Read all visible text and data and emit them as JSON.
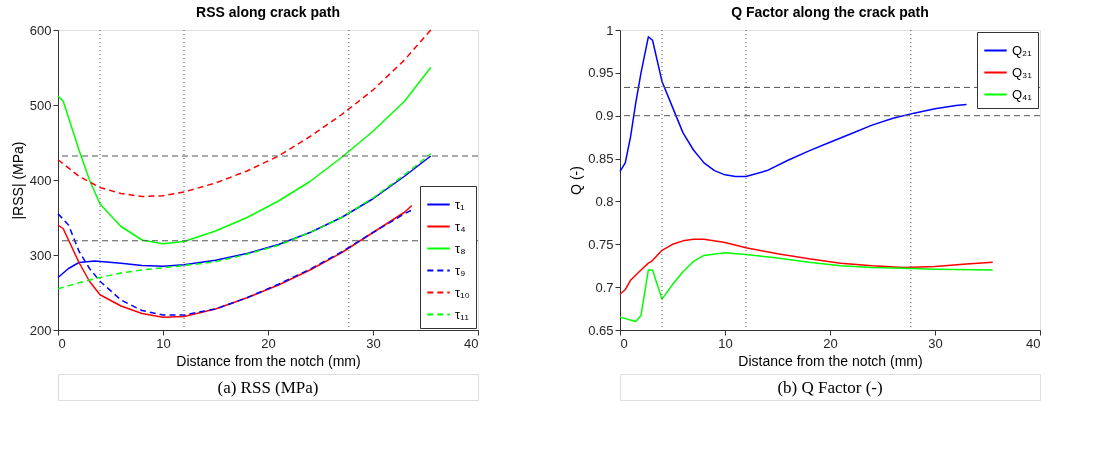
{
  "chart_data": [
    {
      "type": "line",
      "title": "RSS along crack path",
      "xlabel": "Distance from the notch (mm)",
      "ylabel": "|RSS| (MPa)",
      "xlim": [
        0,
        40
      ],
      "xticks": [
        0,
        10,
        20,
        30,
        40
      ],
      "ylim": [
        200,
        600
      ],
      "yticks": [
        200,
        300,
        400,
        500,
        600
      ],
      "grid": false,
      "legend": "bottom right",
      "annotations": [
        "(a)  RSS (MPa)"
      ],
      "ref_lines": [
        {
          "axis": "y",
          "value": 432,
          "color": "#555555",
          "line_style": "dashed"
        },
        {
          "axis": "y",
          "value": 319,
          "color": "#555555",
          "line_style": "dashed"
        },
        {
          "axis": "x",
          "value": 4,
          "color": "#555555",
          "line_style": "dotted"
        },
        {
          "axis": "x",
          "value": 12,
          "color": "#555555",
          "line_style": "dotted"
        },
        {
          "axis": "x",
          "value": 27.7,
          "color": "#555555",
          "line_style": "dotted"
        }
      ],
      "series": [
        {
          "name": "τ₁",
          "color": "#0000ff",
          "line_style": "solid",
          "x": [
            0,
            1,
            2,
            3.5,
            6,
            8,
            10,
            12,
            15,
            18,
            21,
            24,
            27,
            30,
            33,
            35.5
          ],
          "values": [
            270,
            282,
            290,
            292,
            289,
            286,
            285,
            287,
            293,
            302,
            314,
            330,
            350,
            375,
            405,
            432
          ]
        },
        {
          "name": "τ₄",
          "color": "#ff0000",
          "line_style": "solid",
          "x": [
            0,
            0.5,
            1,
            2,
            3,
            4,
            6,
            8,
            10,
            12,
            15,
            18,
            21,
            24,
            27,
            30,
            33,
            33.7
          ],
          "values": [
            340,
            335,
            320,
            290,
            265,
            247,
            232,
            222,
            217,
            218,
            228,
            243,
            260,
            280,
            303,
            330,
            357,
            366
          ]
        },
        {
          "name": "τ₈",
          "color": "#00ff00",
          "line_style": "solid",
          "x": [
            0,
            0.5,
            2,
            3,
            4,
            6,
            8,
            10,
            12,
            15,
            18,
            21,
            24,
            27,
            30,
            33,
            35.5
          ],
          "values": [
            512,
            505,
            440,
            400,
            368,
            338,
            320,
            315,
            318,
            332,
            350,
            372,
            398,
            430,
            465,
            505,
            550
          ]
        },
        {
          "name": "τ₉",
          "color": "#0000ff",
          "line_style": "dashed",
          "x": [
            0,
            1,
            2,
            3,
            4,
            6,
            8,
            10,
            12,
            15,
            18,
            21,
            24,
            27,
            30,
            33,
            33.7
          ],
          "values": [
            355,
            340,
            305,
            282,
            265,
            240,
            226,
            220,
            220,
            228,
            243,
            261,
            281,
            304,
            330,
            355,
            360
          ]
        },
        {
          "name": "τ₁₀",
          "color": "#ff0000",
          "line_style": "dashed",
          "x": [
            0,
            2,
            4,
            6,
            8,
            10,
            12,
            15,
            18,
            21,
            24,
            27,
            30,
            33,
            35.5
          ],
          "values": [
            427,
            405,
            390,
            382,
            378,
            379,
            384,
            396,
            412,
            432,
            458,
            487,
            520,
            560,
            600
          ]
        },
        {
          "name": "τ₁₁",
          "color": "#00ff00",
          "line_style": "dashed",
          "x": [
            0,
            2,
            4,
            6,
            8,
            10,
            12,
            15,
            18,
            21,
            24,
            27,
            30,
            33,
            35.5
          ],
          "values": [
            255,
            263,
            270,
            276,
            280,
            283,
            286,
            291,
            301,
            313,
            330,
            350,
            376,
            407,
            435
          ]
        }
      ]
    },
    {
      "type": "line",
      "title": "Q Factor along the crack path",
      "xlabel": "Distance from the notch (mm)",
      "ylabel": "Q (-)",
      "xlim": [
        0,
        40
      ],
      "xticks": [
        0,
        10,
        20,
        30,
        40
      ],
      "ylim": [
        0.65,
        1
      ],
      "yticks": [
        0.65,
        0.7,
        0.75,
        0.8,
        0.85,
        0.9,
        0.95,
        1
      ],
      "grid": false,
      "legend": "top right",
      "annotations": [
        "(b)  Q Factor (-)"
      ],
      "ref_lines": [
        {
          "axis": "y",
          "value": 0.933,
          "color": "#555555",
          "line_style": "dashed"
        },
        {
          "axis": "y",
          "value": 0.9,
          "color": "#555555",
          "line_style": "dashed"
        },
        {
          "axis": "x",
          "value": 4,
          "color": "#555555",
          "line_style": "dotted"
        },
        {
          "axis": "x",
          "value": 12,
          "color": "#555555",
          "line_style": "dotted"
        },
        {
          "axis": "x",
          "value": 27.7,
          "color": "#555555",
          "line_style": "dotted"
        }
      ],
      "series": [
        {
          "name": "Q₂₁",
          "color": "#0000ff",
          "line_style": "solid",
          "x": [
            0,
            0.5,
            1,
            1.5,
            2,
            2.7,
            3.1,
            4,
            5,
            6,
            7,
            8,
            9,
            10,
            11,
            12,
            14,
            16,
            18,
            20,
            22,
            24,
            26,
            28,
            30,
            32,
            33
          ],
          "values": [
            0.835,
            0.845,
            0.875,
            0.915,
            0.95,
            0.992,
            0.988,
            0.94,
            0.91,
            0.88,
            0.86,
            0.845,
            0.836,
            0.831,
            0.829,
            0.829,
            0.836,
            0.848,
            0.859,
            0.869,
            0.879,
            0.889,
            0.897,
            0.903,
            0.908,
            0.912,
            0.913
          ]
        },
        {
          "name": "Q₃₁",
          "color": "#ff0000",
          "line_style": "solid",
          "x": [
            0,
            0.5,
            1,
            2,
            2.7,
            3,
            4,
            5,
            6,
            7,
            8,
            10,
            12,
            15,
            18,
            21,
            24,
            27,
            30,
            33,
            35.5
          ],
          "values": [
            0.692,
            0.697,
            0.708,
            0.72,
            0.728,
            0.73,
            0.743,
            0.75,
            0.754,
            0.756,
            0.756,
            0.752,
            0.746,
            0.739,
            0.733,
            0.728,
            0.725,
            0.723,
            0.724,
            0.727,
            0.729
          ]
        },
        {
          "name": "Q₄₁",
          "color": "#00ff00",
          "line_style": "solid",
          "x": [
            0,
            1.5,
            2,
            2.7,
            3.1,
            4,
            5,
            6,
            7,
            8,
            10,
            12,
            15,
            18,
            21,
            24,
            27,
            30,
            35.5
          ],
          "values": [
            0.665,
            0.66,
            0.667,
            0.72,
            0.72,
            0.686,
            0.703,
            0.718,
            0.73,
            0.737,
            0.74,
            0.738,
            0.734,
            0.729,
            0.725,
            0.723,
            0.722,
            0.721,
            0.72
          ]
        }
      ]
    }
  ]
}
